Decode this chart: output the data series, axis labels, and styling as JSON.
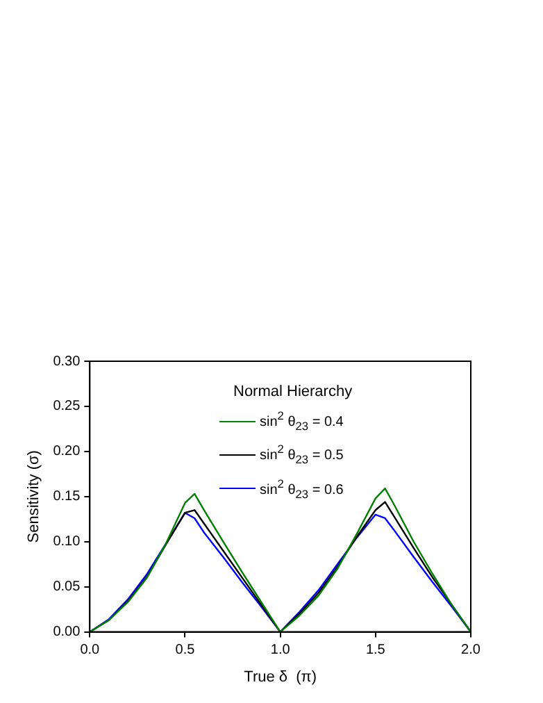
{
  "chart_data": {
    "type": "line",
    "xlabel": "True δ  (π)",
    "ylabel": "Sensitivity (σ)",
    "legend_title": "Normal Hierarchy",
    "legend": "top",
    "x": [
      0,
      0.1,
      0.2,
      0.3,
      0.4,
      0.5,
      0.55,
      0.6,
      0.7,
      0.8,
      0.9,
      1.0,
      1.1,
      1.2,
      1.3,
      1.4,
      1.5,
      1.55,
      1.6,
      1.7,
      1.8,
      1.9,
      2.0
    ],
    "series": [
      {
        "name": "sin$^{2}$ θ$_{23}$ = 0.4",
        "color": "#008000",
        "values": [
          0,
          0.013,
          0.033,
          0.06,
          0.098,
          0.143,
          0.153,
          0.135,
          0.1,
          0.066,
          0.033,
          0,
          0.018,
          0.04,
          0.07,
          0.108,
          0.148,
          0.159,
          0.14,
          0.1,
          0.064,
          0.03,
          0
        ]
      },
      {
        "name": "sin$^{2}$ θ$_{23}$ = 0.5",
        "color": "#000000",
        "values": [
          0,
          0.013,
          0.034,
          0.061,
          0.097,
          0.132,
          0.135,
          0.12,
          0.09,
          0.06,
          0.03,
          0,
          0.02,
          0.043,
          0.072,
          0.105,
          0.135,
          0.144,
          0.127,
          0.093,
          0.06,
          0.03,
          0
        ]
      },
      {
        "name": "sin$^{2}$ θ$_{23}$ = 0.6",
        "color": "#0000ff",
        "values": [
          0,
          0.014,
          0.036,
          0.064,
          0.098,
          0.132,
          0.126,
          0.11,
          0.083,
          0.055,
          0.028,
          0,
          0.022,
          0.046,
          0.075,
          0.104,
          0.13,
          0.126,
          0.112,
          0.083,
          0.055,
          0.028,
          0
        ]
      }
    ],
    "xlim": [
      0,
      2
    ],
    "xticks": [
      {
        "value": 0,
        "label": "0.0"
      },
      {
        "value": 0.5,
        "label": "0.5"
      },
      {
        "value": 1,
        "label": "1.0"
      },
      {
        "value": 1.5,
        "label": "1.5"
      },
      {
        "value": 2,
        "label": "2.0"
      }
    ],
    "ylim": [
      0,
      0.3
    ],
    "yticks": [
      {
        "value": 0,
        "label": "0.00"
      },
      {
        "value": 0.05,
        "label": "0.05"
      },
      {
        "value": 0.1,
        "label": "0.10"
      },
      {
        "value": 0.15,
        "label": "0.15"
      },
      {
        "value": 0.2,
        "label": "0.20"
      },
      {
        "value": 0.25,
        "label": "0.25"
      },
      {
        "value": 0.3,
        "label": "0.30"
      }
    ],
    "grid": false,
    "marker": "none",
    "line_style": "solid"
  }
}
